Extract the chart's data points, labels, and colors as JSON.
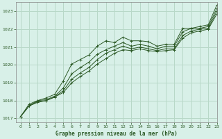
{
  "xlabel": "Graphe pression niveau de la mer (hPa)",
  "xlim": [
    -0.5,
    23
  ],
  "ylim": [
    1016.8,
    1023.5
  ],
  "yticks": [
    1017,
    1018,
    1019,
    1020,
    1021,
    1022,
    1023
  ],
  "xticks": [
    0,
    1,
    2,
    3,
    4,
    5,
    6,
    7,
    8,
    9,
    10,
    11,
    12,
    13,
    14,
    15,
    16,
    17,
    18,
    19,
    20,
    21,
    22,
    23
  ],
  "background_color": "#d8f0e8",
  "grid_color": "#b8d8c8",
  "line_color": "#2d5a27",
  "marker_color": "#2d5a27",
  "series": [
    {
      "x": [
        0,
        1,
        2,
        3,
        4,
        5,
        6,
        7,
        8,
        9,
        10,
        11,
        12,
        13,
        14,
        15,
        16,
        17,
        18,
        19,
        20,
        21,
        22,
        23
      ],
      "y": [
        1017.1,
        1017.8,
        1018.0,
        1018.15,
        1018.35,
        1019.1,
        1020.05,
        1020.3,
        1020.55,
        1021.05,
        1021.35,
        1021.25,
        1021.55,
        1021.35,
        1021.35,
        1021.3,
        1021.05,
        1021.15,
        1021.15,
        1022.05,
        1022.05,
        1022.15,
        1022.25,
        1023.35
      ]
    },
    {
      "x": [
        0,
        1,
        2,
        3,
        4,
        5,
        6,
        7,
        8,
        9,
        10,
        11,
        12,
        13,
        14,
        15,
        16,
        17,
        18,
        19,
        20,
        21,
        22,
        23
      ],
      "y": [
        1017.1,
        1017.7,
        1018.0,
        1018.05,
        1018.25,
        1018.7,
        1019.5,
        1019.85,
        1020.15,
        1020.6,
        1020.85,
        1021.05,
        1021.25,
        1021.05,
        1021.15,
        1021.05,
        1020.9,
        1021.05,
        1021.05,
        1021.85,
        1022.05,
        1022.05,
        1022.15,
        1023.15
      ]
    },
    {
      "x": [
        0,
        1,
        2,
        3,
        4,
        5,
        6,
        7,
        8,
        9,
        10,
        11,
        12,
        13,
        14,
        15,
        16,
        17,
        18,
        19,
        20,
        21,
        22,
        23
      ],
      "y": [
        1017.1,
        1017.7,
        1017.95,
        1018.0,
        1018.2,
        1018.55,
        1019.2,
        1019.55,
        1019.85,
        1020.3,
        1020.65,
        1020.85,
        1021.05,
        1020.9,
        1021.0,
        1020.9,
        1020.8,
        1020.9,
        1020.9,
        1021.65,
        1021.9,
        1022.0,
        1022.05,
        1023.0
      ]
    },
    {
      "x": [
        0,
        1,
        2,
        3,
        4,
        5,
        6,
        7,
        8,
        9,
        10,
        11,
        12,
        13,
        14,
        15,
        16,
        17,
        18,
        19,
        20,
        21,
        22,
        23
      ],
      "y": [
        1017.1,
        1017.7,
        1017.9,
        1018.0,
        1018.2,
        1018.45,
        1019.0,
        1019.35,
        1019.65,
        1020.05,
        1020.35,
        1020.65,
        1020.85,
        1020.8,
        1020.9,
        1020.8,
        1020.75,
        1020.8,
        1020.85,
        1021.5,
        1021.8,
        1021.9,
        1022.0,
        1022.85
      ]
    }
  ]
}
